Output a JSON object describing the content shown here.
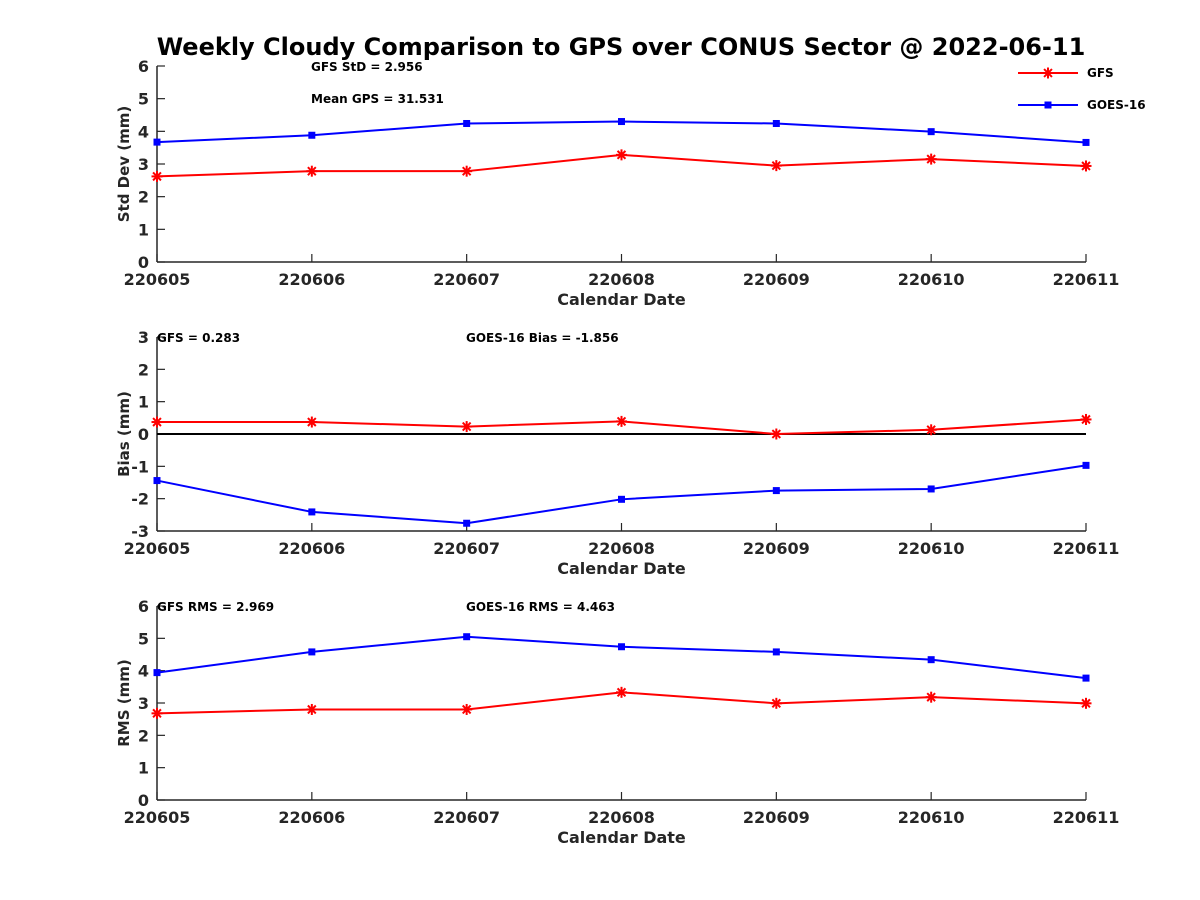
{
  "chart_data": {
    "type": "line",
    "title": "Weekly Cloudy Comparison to GPS over CONUS Sector @ 2022-06-11",
    "categories": [
      "220605",
      "220606",
      "220607",
      "220608",
      "220609",
      "220610",
      "220611"
    ],
    "legend": {
      "placement": "top-right",
      "entries": [
        {
          "name": "GFS",
          "color": "#ff0000",
          "marker": "asterisk"
        },
        {
          "name": "GOES-16",
          "color": "#0000ff",
          "marker": "square"
        }
      ]
    },
    "panels": [
      {
        "key": "std",
        "ylabel": "Std Dev (mm)",
        "xlabel": "Calendar Date",
        "ylim": [
          0,
          6
        ],
        "yticks": [
          "0",
          "1",
          "2",
          "3",
          "4",
          "5",
          "6"
        ],
        "annotations": [
          "GFS StD = 2.956",
          "Mean GPS = 31.531"
        ],
        "zero_line": false,
        "series": [
          {
            "name": "GFS",
            "values": [
              2.62,
              2.78,
              2.78,
              3.28,
              2.95,
              3.15,
              2.94
            ]
          },
          {
            "name": "GOES-16",
            "values": [
              3.67,
              3.88,
              4.24,
              4.3,
              4.24,
              3.99,
              3.66
            ]
          }
        ]
      },
      {
        "key": "bias",
        "ylabel": "Bias (mm)",
        "xlabel": "Calendar Date",
        "ylim": [
          -3,
          3
        ],
        "yticks": [
          "-3",
          "-2",
          "-1",
          "0",
          "1",
          "2",
          "3"
        ],
        "annotations": [
          "GFS = 0.283",
          "GOES-16 Bias  = -1.856"
        ],
        "zero_line": true,
        "series": [
          {
            "name": "GFS",
            "values": [
              0.37,
              0.37,
              0.23,
              0.39,
              0.0,
              0.13,
              0.45
            ]
          },
          {
            "name": "GOES-16",
            "values": [
              -1.44,
              -2.41,
              -2.76,
              -2.02,
              -1.75,
              -1.7,
              -0.97
            ]
          }
        ]
      },
      {
        "key": "rms",
        "ylabel": "RMS (mm)",
        "xlabel": "Calendar Date",
        "ylim": [
          0,
          6
        ],
        "yticks": [
          "0",
          "1",
          "2",
          "3",
          "4",
          "5",
          "6"
        ],
        "annotations": [
          "GFS RMS = 2.969",
          "GOES-16 RMS = 4.463"
        ],
        "zero_line": false,
        "series": [
          {
            "name": "GFS",
            "values": [
              2.68,
              2.8,
              2.8,
              3.33,
              2.99,
              3.18,
              2.99
            ]
          },
          {
            "name": "GOES-16",
            "values": [
              3.94,
              4.58,
              5.05,
              4.74,
              4.58,
              4.34,
              3.77
            ]
          }
        ]
      }
    ],
    "grid": false
  }
}
